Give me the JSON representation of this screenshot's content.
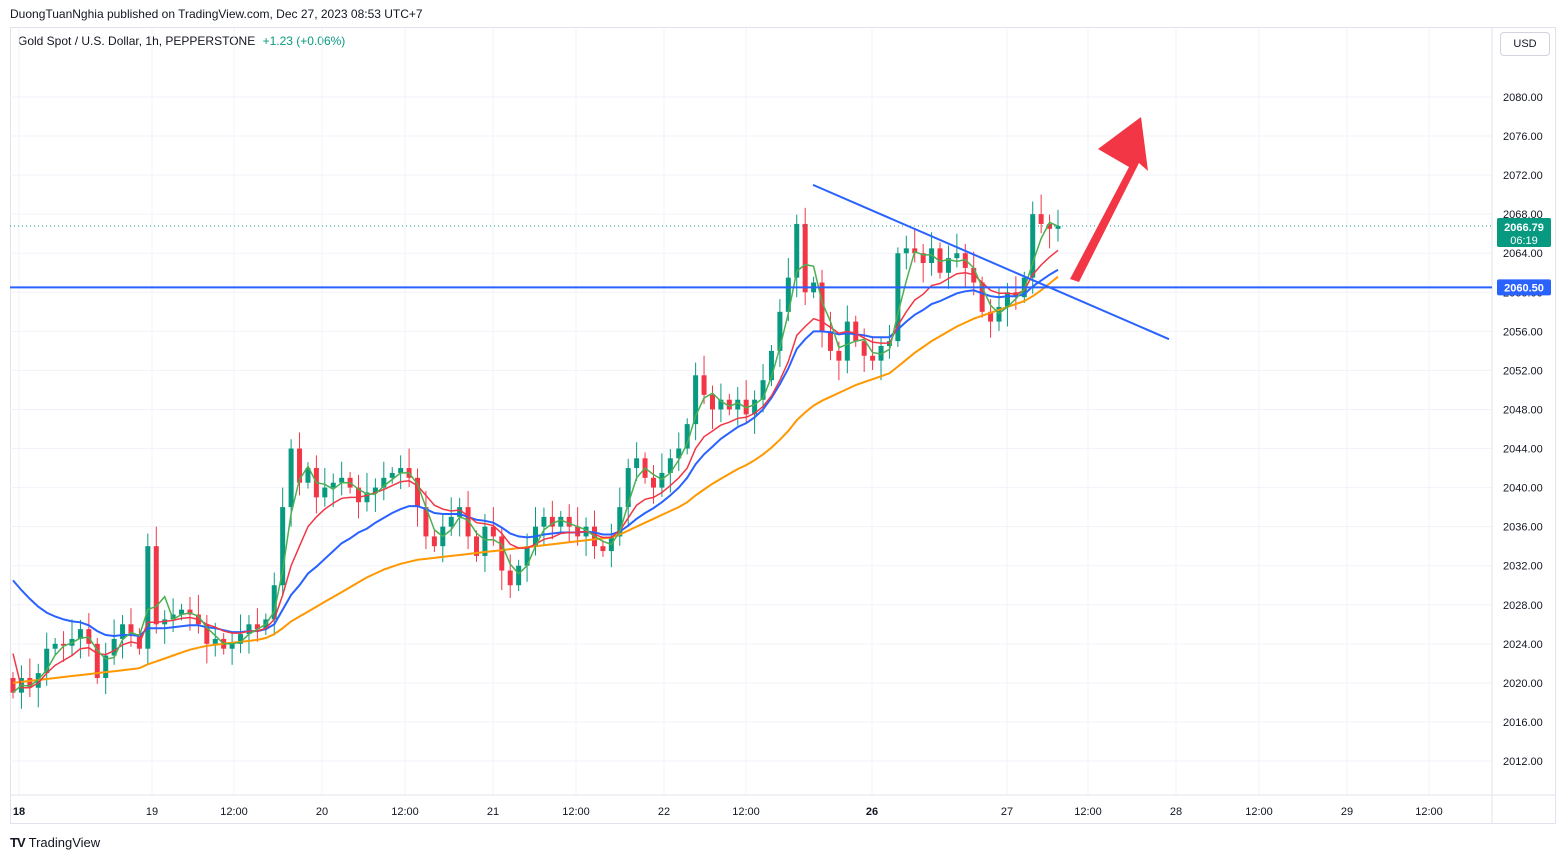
{
  "publisher": "DuongTuanNghia published on TradingView.com, Dec 27, 2023 08:53 UTC+7",
  "legend": {
    "symbol": "Gold Spot / U.S. Dollar, 1h, PEPPERSTONE",
    "change": "+1.23 (+0.06%)"
  },
  "currency": "USD",
  "brand": "TradingView",
  "colors": {
    "up": "#089981",
    "down": "#f23645",
    "ema_fast_green": "#4caf50",
    "ema_red": "#f23645",
    "ema_blue": "#2962ff",
    "ema_orange": "#ff9800",
    "annotation": "#2962ff",
    "arrow": "#f23645"
  },
  "chart_data": {
    "type": "candlestick",
    "title": "Gold Spot / U.S. Dollar, 1h, PEPPERSTONE",
    "ylim": [
      2008,
      2085
    ],
    "y_ticks": [
      "2012.00",
      "2016.00",
      "2020.00",
      "2024.00",
      "2028.00",
      "2032.00",
      "2036.00",
      "2040.00",
      "2044.00",
      "2048.00",
      "2052.00",
      "2056.00",
      "2060.00",
      "2064.00",
      "2068.00",
      "2072.00",
      "2076.00",
      "2080.00"
    ],
    "x_ticks": [
      {
        "label": "18",
        "bold": true
      },
      {
        "label": "19",
        "bold": false
      },
      {
        "label": "12:00",
        "bold": false
      },
      {
        "label": "20",
        "bold": false
      },
      {
        "label": "12:00",
        "bold": false
      },
      {
        "label": "21",
        "bold": false
      },
      {
        "label": "12:00",
        "bold": false
      },
      {
        "label": "22",
        "bold": false
      },
      {
        "label": "12:00",
        "bold": false
      },
      {
        "label": "26",
        "bold": true
      },
      {
        "label": "27",
        "bold": false
      },
      {
        "label": "12:00",
        "bold": false
      },
      {
        "label": "28",
        "bold": false
      },
      {
        "label": "12:00",
        "bold": false
      },
      {
        "label": "29",
        "bold": false
      },
      {
        "label": "12:00",
        "bold": false
      }
    ],
    "last_price": "2066.79",
    "countdown": "06:19",
    "horizontal_level": "2060.50",
    "closes": [
      2019.0,
      2020.5,
      2019.5,
      2021.0,
      2023.5,
      2024.0,
      2023.8,
      2024.5,
      2025.5,
      2024.0,
      2020.5,
      2022.8,
      2024.5,
      2026.0,
      2025.0,
      2023.5,
      2034.0,
      2026.0,
      2026.5,
      2027.0,
      2027.5,
      2027.0,
      2026.0,
      2024.0,
      2024.5,
      2023.5,
      2024.0,
      2025.0,
      2026.0,
      2025.5,
      2026.5,
      2030.0,
      2038.0,
      2044.0,
      2040.5,
      2042.0,
      2039.0,
      2040.0,
      2040.5,
      2041.0,
      2040.0,
      2038.5,
      2039.5,
      2040.0,
      2041.0,
      2041.5,
      2042.0,
      2041.0,
      2038.0,
      2035.0,
      2034.0,
      2036.0,
      2037.0,
      2038.0,
      2035.0,
      2033.0,
      2036.0,
      2035.0,
      2031.5,
      2030.0,
      2032.0,
      2034.0,
      2036.0,
      2037.0,
      2036.0,
      2037.0,
      2036.0,
      2035.0,
      2036.0,
      2034.0,
      2033.5,
      2035.0,
      2038.0,
      2042.0,
      2043.0,
      2041.0,
      2040.0,
      2041.5,
      2043.0,
      2044.0,
      2046.5,
      2051.5,
      2049.5,
      2048.0,
      2049.0,
      2048.0,
      2049.0,
      2047.5,
      2049.0,
      2051.0,
      2054.0,
      2058.0,
      2061.5,
      2067.0,
      2060.0,
      2061.0,
      2056.0,
      2054.0,
      2053.0,
      2057.0,
      2055.0,
      2053.5,
      2053.0,
      2054.5,
      2055.0,
      2064.0,
      2064.5,
      2064.0,
      2063.0,
      2064.5,
      2062.0,
      2063.5,
      2064.0,
      2062.5,
      2061.0,
      2058.0,
      2057.0,
      2058.5,
      2060.0,
      2059.5,
      2061.5,
      2068.0,
      2067.0,
      2066.5,
      2066.79
    ],
    "ema_red": [
      2023.0,
      2019.5,
      2019.5,
      2020.0,
      2021.0,
      2021.8,
      2022.3,
      2022.8,
      2023.5,
      2023.6,
      2023.0,
      2022.9,
      2023.3,
      2023.9,
      2024.2,
      2024.0,
      2026.2,
      2026.2,
      2026.3,
      2026.4,
      2026.6,
      2026.7,
      2026.5,
      2026.0,
      2025.7,
      2025.3,
      2025.1,
      2025.1,
      2025.3,
      2025.3,
      2025.6,
      2026.5,
      2029.0,
      2032.0,
      2034.0,
      2036.0,
      2037.0,
      2037.8,
      2038.4,
      2038.9,
      2039.0,
      2039.0,
      2039.2,
      2039.5,
      2039.8,
      2040.2,
      2040.6,
      2040.7,
      2040.2,
      2039.2,
      2038.2,
      2037.8,
      2037.6,
      2037.7,
      2037.1,
      2036.4,
      2036.3,
      2036.1,
      2035.3,
      2034.2,
      2033.8,
      2033.8,
      2034.2,
      2034.7,
      2034.9,
      2035.3,
      2035.4,
      2035.4,
      2035.5,
      2035.2,
      2034.9,
      2034.9,
      2035.6,
      2036.9,
      2038.2,
      2038.8,
      2039.0,
      2039.5,
      2040.2,
      2041.0,
      2042.0,
      2044.0,
      2045.2,
      2045.8,
      2046.4,
      2046.7,
      2047.1,
      2047.2,
      2047.6,
      2048.3,
      2049.4,
      2051.0,
      2052.9,
      2055.6,
      2056.5,
      2057.3,
      2057.0,
      2056.4,
      2055.8,
      2056.0,
      2055.8,
      2055.3,
      2054.9,
      2054.8,
      2054.8,
      2056.6,
      2058.0,
      2059.2,
      2059.8,
      2060.7,
      2060.9,
      2061.4,
      2061.9,
      2062.0,
      2061.8,
      2061.0,
      2060.2,
      2059.9,
      2059.9,
      2059.8,
      2060.2,
      2061.8,
      2062.8,
      2063.6,
      2064.3
    ],
    "ema_blue": [
      2030.5,
      2029.5,
      2028.6,
      2027.8,
      2027.2,
      2026.8,
      2026.5,
      2026.3,
      2026.2,
      2025.9,
      2025.3,
      2024.9,
      2024.8,
      2024.9,
      2024.9,
      2024.8,
      2025.6,
      2025.6,
      2025.6,
      2025.7,
      2025.8,
      2025.9,
      2025.9,
      2025.7,
      2025.6,
      2025.4,
      2025.2,
      2025.2,
      2025.3,
      2025.3,
      2025.5,
      2026.0,
      2027.5,
      2029.0,
      2030.0,
      2031.2,
      2031.9,
      2032.7,
      2033.5,
      2034.3,
      2034.8,
      2035.4,
      2035.8,
      2036.4,
      2036.9,
      2037.4,
      2037.8,
      2038.1,
      2038.1,
      2037.8,
      2037.4,
      2037.3,
      2037.3,
      2037.3,
      2037.0,
      2036.7,
      2036.6,
      2036.4,
      2035.9,
      2035.3,
      2035.0,
      2034.9,
      2035.0,
      2035.2,
      2035.3,
      2035.4,
      2035.4,
      2035.4,
      2035.5,
      2035.4,
      2035.2,
      2035.2,
      2035.5,
      2036.1,
      2036.8,
      2037.4,
      2037.9,
      2038.5,
      2039.2,
      2040.0,
      2041.0,
      2042.4,
      2043.4,
      2044.2,
      2045.0,
      2045.6,
      2046.2,
      2046.6,
      2047.2,
      2048.0,
      2049.2,
      2050.6,
      2052.2,
      2054.2,
      2055.2,
      2056.0,
      2056.0,
      2055.9,
      2055.7,
      2055.8,
      2055.7,
      2055.6,
      2055.4,
      2055.4,
      2055.4,
      2056.2,
      2057.0,
      2057.7,
      2058.2,
      2058.8,
      2059.1,
      2059.5,
      2059.9,
      2060.1,
      2060.2,
      2059.9,
      2059.6,
      2059.5,
      2059.6,
      2059.6,
      2059.8,
      2060.6,
      2061.2,
      2061.8,
      2062.3
    ],
    "ema_orange": [
      2020.0,
      2020.1,
      2020.2,
      2020.3,
      2020.4,
      2020.5,
      2020.6,
      2020.7,
      2020.8,
      2020.9,
      2021.0,
      2021.1,
      2021.2,
      2021.3,
      2021.4,
      2021.5,
      2021.9,
      2022.2,
      2022.5,
      2022.8,
      2023.1,
      2023.4,
      2023.6,
      2023.8,
      2023.9,
      2024.0,
      2024.1,
      2024.2,
      2024.3,
      2024.4,
      2024.6,
      2025.0,
      2025.6,
      2026.3,
      2026.8,
      2027.3,
      2027.8,
      2028.3,
      2028.8,
      2029.3,
      2029.8,
      2030.3,
      2030.8,
      2031.2,
      2031.6,
      2031.9,
      2032.2,
      2032.4,
      2032.6,
      2032.7,
      2032.8,
      2032.9,
      2033.0,
      2033.1,
      2033.2,
      2033.3,
      2033.4,
      2033.5,
      2033.6,
      2033.7,
      2033.8,
      2033.9,
      2034.0,
      2034.1,
      2034.2,
      2034.3,
      2034.4,
      2034.5,
      2034.6,
      2034.7,
      2034.8,
      2034.9,
      2035.2,
      2035.6,
      2036.0,
      2036.4,
      2036.8,
      2037.2,
      2037.6,
      2038.0,
      2038.5,
      2039.2,
      2039.8,
      2040.4,
      2040.9,
      2041.4,
      2041.9,
      2042.3,
      2042.8,
      2043.4,
      2044.1,
      2044.9,
      2045.8,
      2046.9,
      2047.7,
      2048.4,
      2048.9,
      2049.3,
      2049.7,
      2050.1,
      2050.5,
      2050.8,
      2051.1,
      2051.4,
      2051.7,
      2052.4,
      2053.1,
      2053.8,
      2054.4,
      2055.0,
      2055.5,
      2056.0,
      2056.5,
      2056.9,
      2057.3,
      2057.6,
      2057.9,
      2058.2,
      2058.5,
      2058.8,
      2059.1,
      2059.6,
      2060.2,
      2060.9,
      2061.6
    ]
  },
  "ema_green_note": ""
}
